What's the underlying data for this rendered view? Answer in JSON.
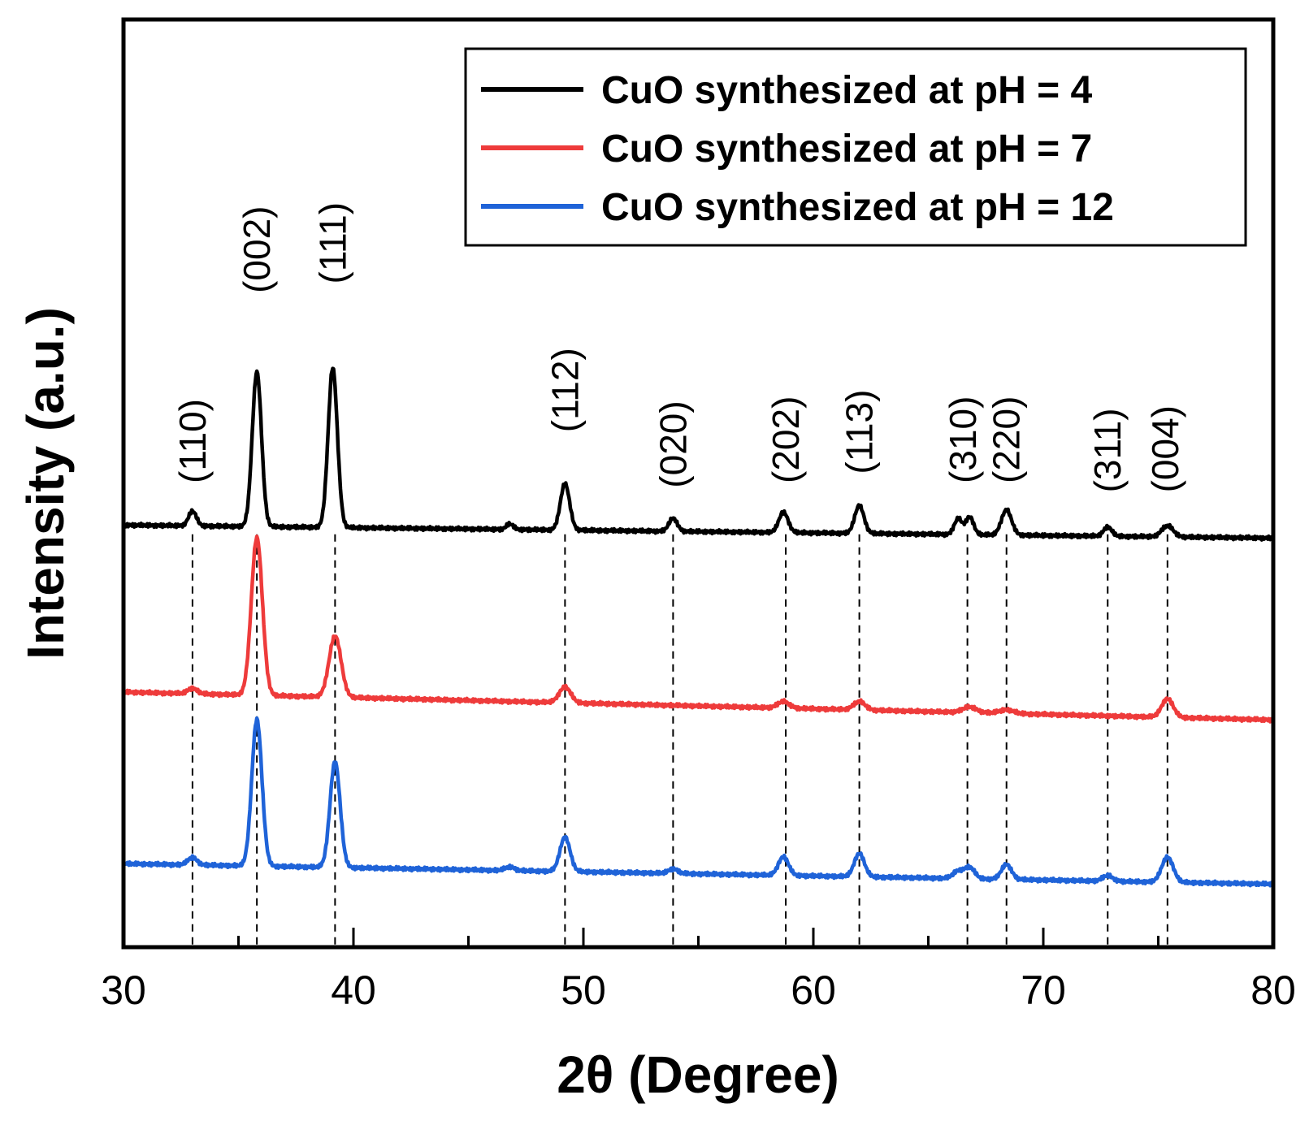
{
  "chart_data": {
    "type": "line",
    "title": "",
    "xlabel": "2θ (Degree)",
    "ylabel": "Intensity (a.u.)",
    "xlim": [
      30,
      80
    ],
    "xticks": [
      30,
      40,
      50,
      60,
      70,
      80
    ],
    "ylim": [
      0,
      1
    ],
    "grid": false,
    "legend_position": "top-right",
    "series": [
      {
        "name": "CuO synthesized at pH = 4",
        "color": "#000000",
        "baseline_start": 0.455,
        "baseline_end": 0.441,
        "peaks": [
          {
            "x": 33.0,
            "h": 0.016,
            "w": 0.17
          },
          {
            "x": 35.8,
            "h": 0.167,
            "w": 0.2
          },
          {
            "x": 39.1,
            "h": 0.172,
            "w": 0.2
          },
          {
            "x": 46.8,
            "h": 0.006,
            "w": 0.15
          },
          {
            "x": 49.2,
            "h": 0.05,
            "w": 0.2
          },
          {
            "x": 53.9,
            "h": 0.014,
            "w": 0.18
          },
          {
            "x": 58.7,
            "h": 0.022,
            "w": 0.2
          },
          {
            "x": 62.0,
            "h": 0.03,
            "w": 0.2
          },
          {
            "x": 66.3,
            "h": 0.017,
            "w": 0.17
          },
          {
            "x": 66.8,
            "h": 0.019,
            "w": 0.17
          },
          {
            "x": 68.4,
            "h": 0.027,
            "w": 0.22
          },
          {
            "x": 72.8,
            "h": 0.01,
            "w": 0.18
          },
          {
            "x": 75.4,
            "h": 0.012,
            "w": 0.25
          }
        ]
      },
      {
        "name": "CuO synthesized at pH = 7",
        "color": "#ee3b3b",
        "baseline_start": 0.275,
        "baseline_end": 0.245,
        "peaks": [
          {
            "x": 33.0,
            "h": 0.006,
            "w": 0.2
          },
          {
            "x": 35.8,
            "h": 0.17,
            "w": 0.24
          },
          {
            "x": 39.2,
            "h": 0.066,
            "w": 0.26
          },
          {
            "x": 49.2,
            "h": 0.017,
            "w": 0.25
          },
          {
            "x": 58.7,
            "h": 0.007,
            "w": 0.25
          },
          {
            "x": 62.0,
            "h": 0.009,
            "w": 0.25
          },
          {
            "x": 66.8,
            "h": 0.006,
            "w": 0.3
          },
          {
            "x": 68.4,
            "h": 0.004,
            "w": 0.3
          },
          {
            "x": 75.4,
            "h": 0.02,
            "w": 0.25
          }
        ]
      },
      {
        "name": "CuO synthesized at pH = 12",
        "color": "#1f63d8",
        "baseline_start": 0.09,
        "baseline_end": 0.068,
        "peaks": [
          {
            "x": 33.0,
            "h": 0.008,
            "w": 0.2
          },
          {
            "x": 35.8,
            "h": 0.158,
            "w": 0.22
          },
          {
            "x": 39.2,
            "h": 0.114,
            "w": 0.22
          },
          {
            "x": 46.8,
            "h": 0.004,
            "w": 0.2
          },
          {
            "x": 49.2,
            "h": 0.037,
            "w": 0.22
          },
          {
            "x": 53.9,
            "h": 0.005,
            "w": 0.2
          },
          {
            "x": 58.7,
            "h": 0.02,
            "w": 0.22
          },
          {
            "x": 62.0,
            "h": 0.025,
            "w": 0.22
          },
          {
            "x": 66.3,
            "h": 0.008,
            "w": 0.22
          },
          {
            "x": 66.8,
            "h": 0.012,
            "w": 0.22
          },
          {
            "x": 68.4,
            "h": 0.016,
            "w": 0.22
          },
          {
            "x": 72.8,
            "h": 0.006,
            "w": 0.22
          },
          {
            "x": 75.4,
            "h": 0.027,
            "w": 0.25
          }
        ]
      }
    ],
    "reference_lines": [
      33.0,
      35.8,
      39.2,
      49.2,
      53.9,
      58.8,
      62.0,
      66.7,
      68.4,
      72.8,
      75.4
    ],
    "annotations": [
      {
        "label": "(110)",
        "x": 33.0,
        "y": 0.5
      },
      {
        "label": "(002)",
        "x": 35.8,
        "y": 0.705
      },
      {
        "label": "(111)",
        "x": 39.1,
        "y": 0.715
      },
      {
        "label": "(112)",
        "x": 49.2,
        "y": 0.555
      },
      {
        "label": "(020)",
        "x": 53.9,
        "y": 0.495
      },
      {
        "label": "(202)",
        "x": 58.8,
        "y": 0.5
      },
      {
        "label": "(113)",
        "x": 62.0,
        "y": 0.51
      },
      {
        "label": "(310)",
        "x": 66.5,
        "y": 0.5
      },
      {
        "label": "(220)",
        "x": 68.4,
        "y": 0.5
      },
      {
        "label": "(311)",
        "x": 72.8,
        "y": 0.49
      },
      {
        "label": "(004)",
        "x": 75.3,
        "y": 0.49
      }
    ]
  }
}
